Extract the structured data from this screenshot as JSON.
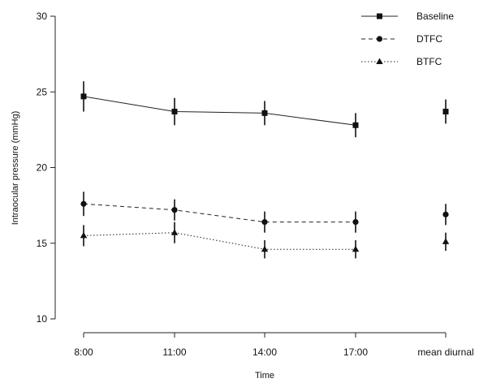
{
  "chart_data": {
    "type": "line",
    "xlabel": "Time",
    "ylabel": "Intraocular pressure (mmHg)",
    "categories": [
      "8:00",
      "11:00",
      "14:00",
      "17:00",
      "mean diurnal"
    ],
    "ylim": [
      10,
      30
    ],
    "yticks": [
      10,
      15,
      20,
      25,
      30
    ],
    "grid": false,
    "legend_position": "top-right",
    "series": [
      {
        "name": "Baseline",
        "marker": "square",
        "line_style": "solid",
        "values": [
          24.7,
          23.7,
          23.6,
          22.8,
          23.7
        ],
        "error": [
          1.0,
          0.9,
          0.8,
          0.8,
          0.8
        ],
        "connect_points": 4
      },
      {
        "name": "DTFC",
        "marker": "circle",
        "line_style": "dashed",
        "values": [
          17.6,
          17.2,
          16.4,
          16.4,
          16.9
        ],
        "error": [
          0.8,
          0.7,
          0.7,
          0.7,
          0.7
        ],
        "connect_points": 4
      },
      {
        "name": "BTFC",
        "marker": "triangle",
        "line_style": "dotted",
        "values": [
          15.5,
          15.7,
          14.6,
          14.6,
          15.1
        ],
        "error": [
          0.7,
          0.7,
          0.6,
          0.6,
          0.6
        ],
        "connect_points": 4
      }
    ]
  }
}
